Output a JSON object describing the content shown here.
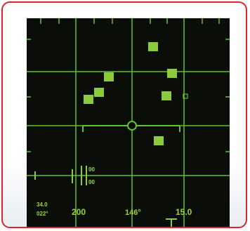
{
  "display": {
    "colors": {
      "background": "#0a0d08",
      "grid": "#5fc232",
      "target": "#8ccc3c",
      "text": "#9ad63a",
      "frame": "#d9262c"
    },
    "crosshair_icon": "reticle-circle-icon",
    "targets_count": 7,
    "readouts": {
      "alt_value": "34.0",
      "heading_small": "022°",
      "range_left": "200",
      "heading_center": "146°",
      "range_right": "15.0",
      "marker_top": "00",
      "marker_bottom": "00"
    }
  }
}
